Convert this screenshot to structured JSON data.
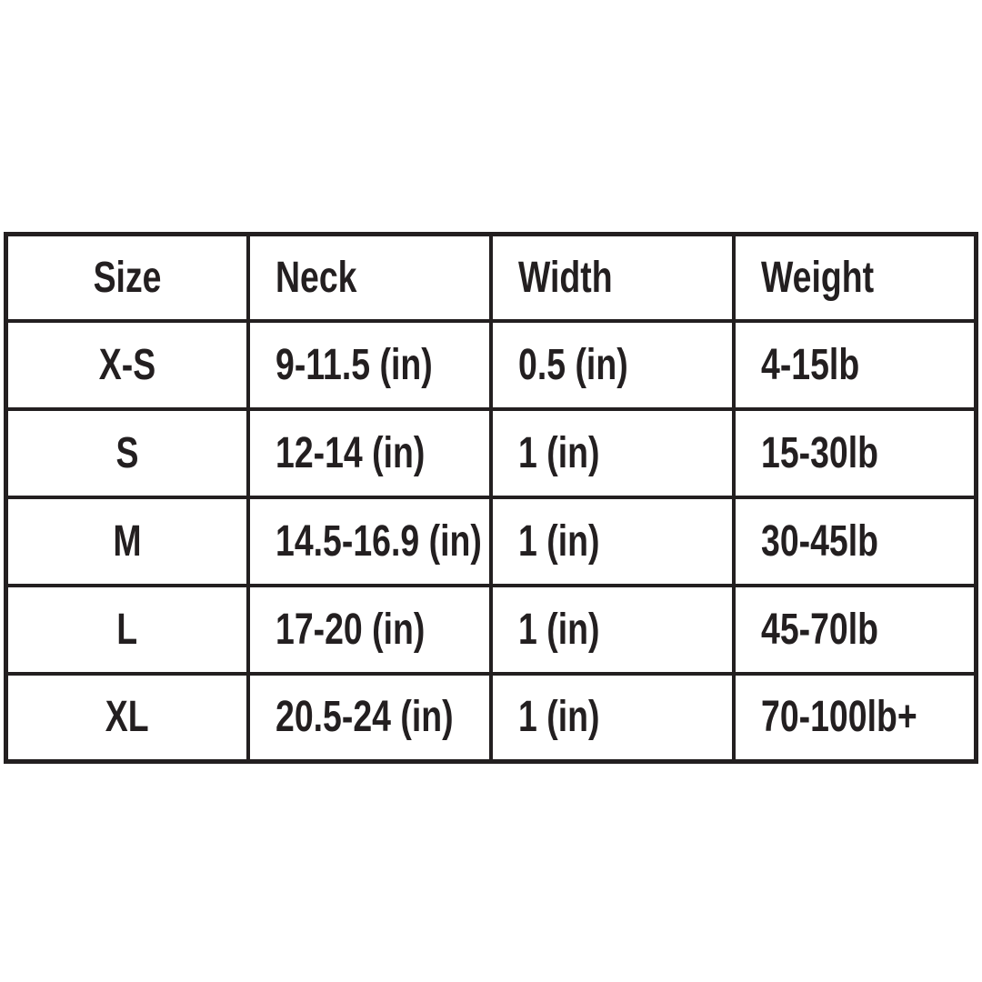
{
  "colors": {
    "border": "#231f20",
    "text": "#231f20",
    "background": "#ffffff"
  },
  "chart_data": {
    "type": "table",
    "columns": [
      "Size",
      "Neck",
      "Width",
      "Weight"
    ],
    "rows": [
      [
        "X-S",
        "9-11.5 (in)",
        "0.5 (in)",
        "4-15lb"
      ],
      [
        "S",
        "12-14 (in)",
        "1 (in)",
        "15-30lb"
      ],
      [
        "M",
        "14.5-16.9 (in)",
        "1 (in)",
        "30-45lb"
      ],
      [
        "L",
        "17-20 (in)",
        "1 (in)",
        "45-70lb"
      ],
      [
        "XL",
        "20.5-24 (in)",
        "1 (in)",
        "70-100lb+"
      ]
    ]
  }
}
